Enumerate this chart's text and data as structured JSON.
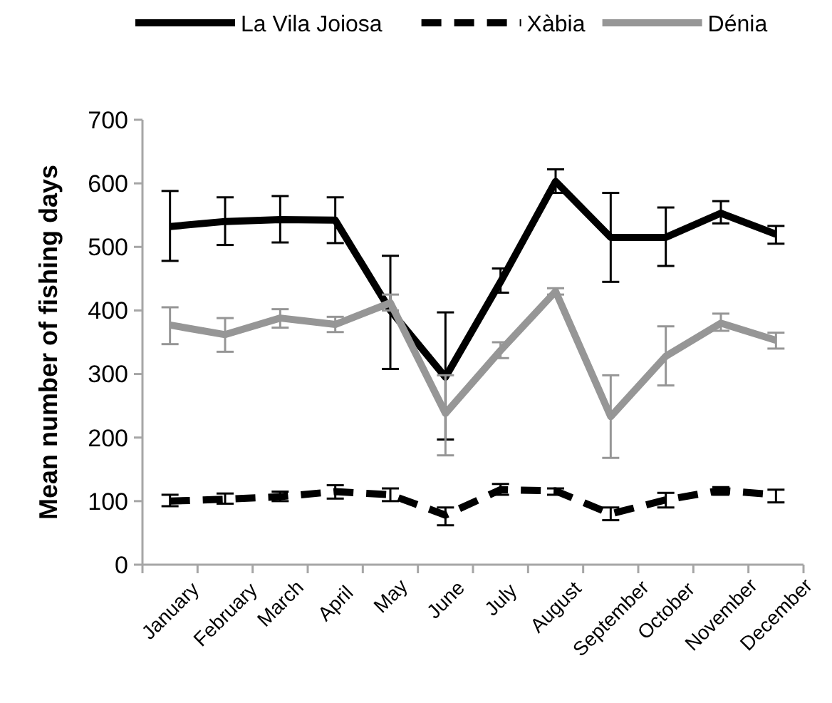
{
  "chart_data": {
    "type": "line",
    "ylabel": "Mean number of fishing days",
    "categories": [
      "January",
      "February",
      "March",
      "April",
      "May",
      "June",
      "July",
      "August",
      "September",
      "October",
      "November",
      "December"
    ],
    "series": [
      {
        "name": "La Vila Joiosa",
        "color": "#000000",
        "line_style": "solid",
        "values": [
          532,
          540,
          543,
          542,
          400,
          295,
          445,
          603,
          515,
          515,
          553,
          520
        ],
        "errors": [
          [
            478,
            588
          ],
          [
            503,
            578
          ],
          [
            507,
            580
          ],
          [
            506,
            578
          ],
          [
            308,
            486
          ],
          [
            197,
            397
          ],
          [
            428,
            466
          ],
          [
            585,
            622
          ],
          [
            445,
            585
          ],
          [
            470,
            562
          ],
          [
            537,
            572
          ],
          [
            505,
            533
          ]
        ]
      },
      {
        "name": "Xàbia",
        "color": "#000000",
        "line_style": "dashed",
        "values": [
          100,
          103,
          107,
          115,
          110,
          78,
          118,
          116,
          80,
          102,
          117,
          110
        ],
        "errors": [
          [
            92,
            110
          ],
          [
            96,
            112
          ],
          [
            100,
            115
          ],
          [
            104,
            125
          ],
          [
            100,
            120
          ],
          [
            62,
            90
          ],
          [
            110,
            127
          ],
          [
            110,
            120
          ],
          [
            70,
            90
          ],
          [
            90,
            113
          ],
          [
            110,
            122
          ],
          [
            98,
            118
          ]
        ]
      },
      {
        "name": "Dénia",
        "color": "#969696",
        "line_style": "solid",
        "values": [
          377,
          362,
          388,
          378,
          412,
          238,
          337,
          430,
          233,
          328,
          380,
          353
        ],
        "errors": [
          [
            347,
            405
          ],
          [
            335,
            388
          ],
          [
            373,
            402
          ],
          [
            366,
            390
          ],
          [
            400,
            425
          ],
          [
            172,
            298
          ],
          [
            325,
            350
          ],
          [
            425,
            435
          ],
          [
            168,
            298
          ],
          [
            282,
            375
          ],
          [
            368,
            395
          ],
          [
            340,
            365
          ]
        ]
      }
    ],
    "ylim": [
      0,
      700
    ],
    "yticks": [
      0,
      100,
      200,
      300,
      400,
      500,
      600,
      700
    ],
    "grid": false,
    "legend": "top",
    "marker": "none"
  }
}
